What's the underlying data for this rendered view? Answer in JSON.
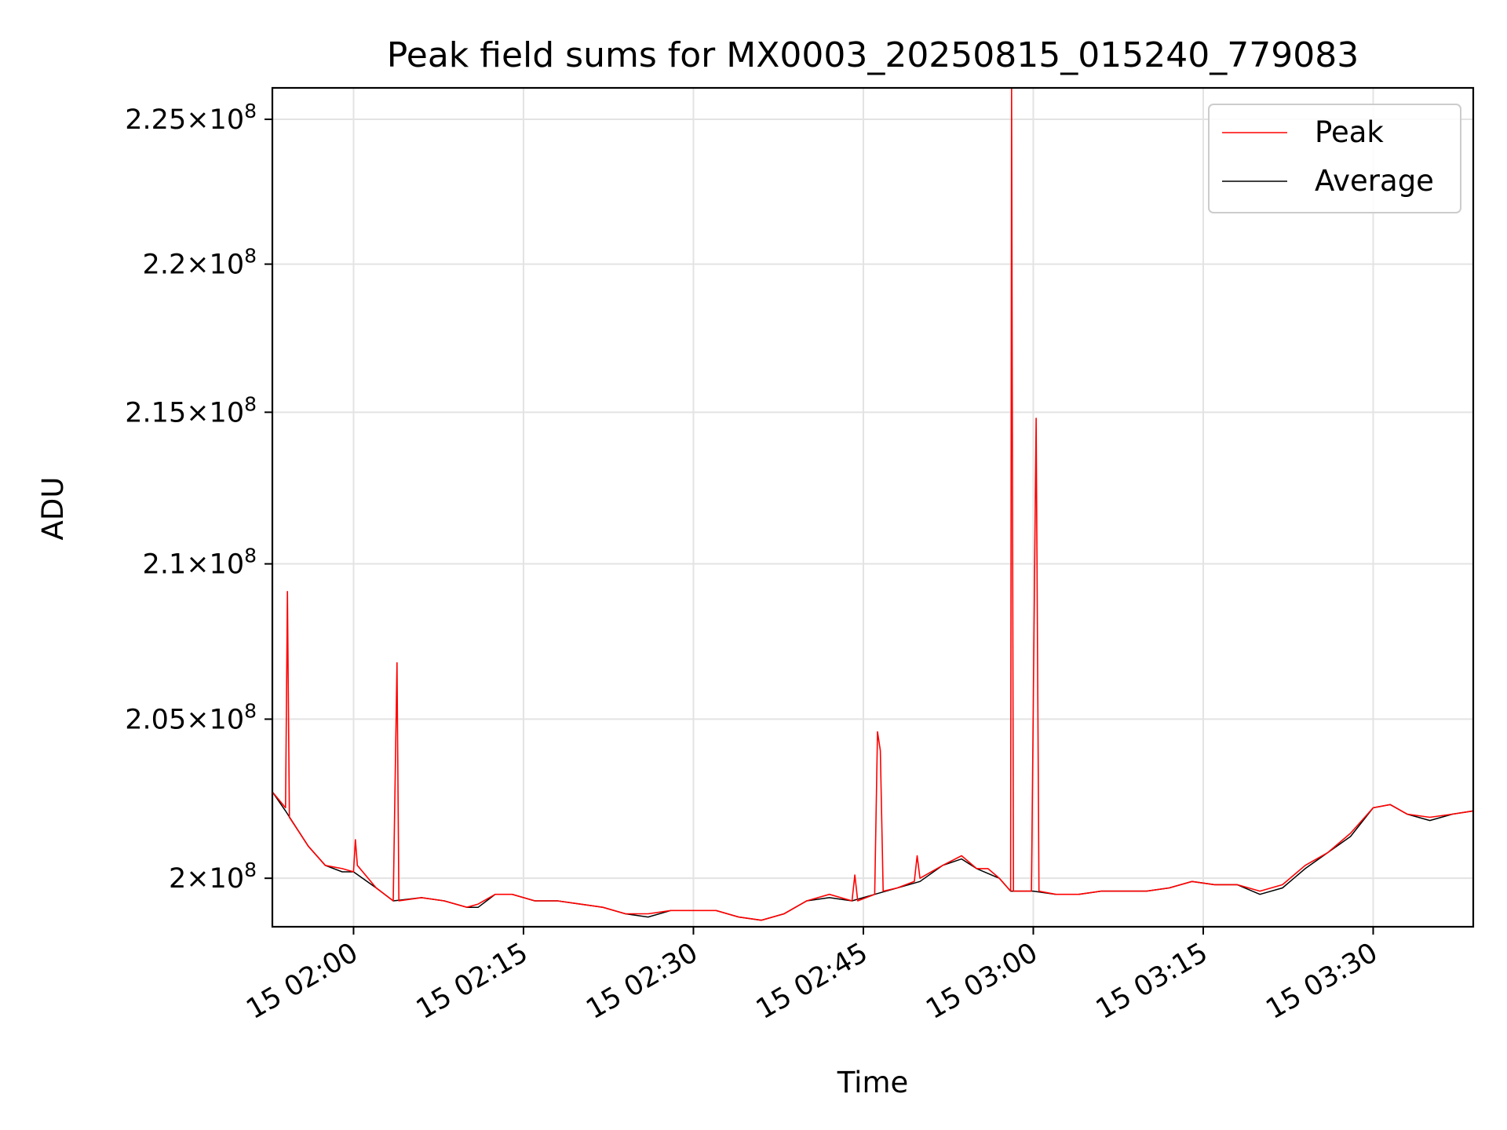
{
  "chart_data": {
    "type": "line",
    "title": "Peak field sums for MX0003_20250815_015240_779083",
    "xlabel": "Time",
    "ylabel": "ADU",
    "x_format": "time (HH:MM, day 15)",
    "xlim": [
      "01:52:50",
      "03:38:50"
    ],
    "ylim": [
      198500000,
      226100000
    ],
    "y_scale": "log",
    "grid": true,
    "legend_position": "top-right",
    "x_ticks": [
      "15 02:00",
      "15 02:15",
      "15 02:30",
      "15 02:45",
      "15 03:00",
      "15 03:15",
      "15 03:30"
    ],
    "y_ticks": [
      {
        "value": 200000000,
        "mant": "2",
        "exp": "8"
      },
      {
        "value": 205000000,
        "mant": "2.05",
        "exp": "8"
      },
      {
        "value": 210000000,
        "mant": "2.1",
        "exp": "8"
      },
      {
        "value": 215000000,
        "mant": "2.15",
        "exp": "8"
      },
      {
        "value": 220000000,
        "mant": "2.2",
        "exp": "8"
      },
      {
        "value": 225000000,
        "mant": "2.25",
        "exp": "8"
      }
    ],
    "series": [
      {
        "name": "Peak",
        "color": "#ff0000",
        "points": [
          [
            "01:52:50",
            202700000
          ],
          [
            "01:54:00",
            202200000
          ],
          [
            "01:54:10",
            209100000
          ],
          [
            "01:54:20",
            201900000
          ],
          [
            "01:56:00",
            201000000
          ],
          [
            "01:57:30",
            200400000
          ],
          [
            "01:59:00",
            200300000
          ],
          [
            "02:00:00",
            200200000
          ],
          [
            "02:00:10",
            201200000
          ],
          [
            "02:00:20",
            200400000
          ],
          [
            "02:02:00",
            199700000
          ],
          [
            "02:03:30",
            199300000
          ],
          [
            "02:03:50",
            206800000
          ],
          [
            "02:04:00",
            199300000
          ],
          [
            "02:06:00",
            199400000
          ],
          [
            "02:08:00",
            199300000
          ],
          [
            "02:10:00",
            199100000
          ],
          [
            "02:11:00",
            199200000
          ],
          [
            "02:12:30",
            199500000
          ],
          [
            "02:14:00",
            199500000
          ],
          [
            "02:16:00",
            199300000
          ],
          [
            "02:18:00",
            199300000
          ],
          [
            "02:20:00",
            199200000
          ],
          [
            "02:22:00",
            199100000
          ],
          [
            "02:24:00",
            198900000
          ],
          [
            "02:26:00",
            198900000
          ],
          [
            "02:28:00",
            199000000
          ],
          [
            "02:30:00",
            199000000
          ],
          [
            "02:32:00",
            199000000
          ],
          [
            "02:34:00",
            198800000
          ],
          [
            "02:36:00",
            198700000
          ],
          [
            "02:38:00",
            198900000
          ],
          [
            "02:40:00",
            199300000
          ],
          [
            "02:42:00",
            199500000
          ],
          [
            "02:44:00",
            199300000
          ],
          [
            "02:44:15",
            200100000
          ],
          [
            "02:44:30",
            199300000
          ],
          [
            "02:46:00",
            199500000
          ],
          [
            "02:46:15",
            204600000
          ],
          [
            "02:46:30",
            204000000
          ],
          [
            "02:46:45",
            199600000
          ],
          [
            "02:48:00",
            199700000
          ],
          [
            "02:49:30",
            199900000
          ],
          [
            "02:49:45",
            200700000
          ],
          [
            "02:50:00",
            200000000
          ],
          [
            "02:52:00",
            200400000
          ],
          [
            "02:53:40",
            200700000
          ],
          [
            "02:55:00",
            200300000
          ],
          [
            "02:56:00",
            200300000
          ],
          [
            "02:57:00",
            200000000
          ],
          [
            "02:58:00",
            199600000
          ],
          [
            "02:58:05",
            226100000
          ],
          [
            "02:58:15",
            199600000
          ],
          [
            "02:59:50",
            199600000
          ],
          [
            "03:00:15",
            214800000
          ],
          [
            "03:00:30",
            199600000
          ],
          [
            "03:02:00",
            199500000
          ],
          [
            "03:04:00",
            199500000
          ],
          [
            "03:06:00",
            199600000
          ],
          [
            "03:08:00",
            199600000
          ],
          [
            "03:10:00",
            199600000
          ],
          [
            "03:12:00",
            199700000
          ],
          [
            "03:14:00",
            199900000
          ],
          [
            "03:16:00",
            199800000
          ],
          [
            "03:18:00",
            199800000
          ],
          [
            "03:20:00",
            199600000
          ],
          [
            "03:22:00",
            199800000
          ],
          [
            "03:24:00",
            200400000
          ],
          [
            "03:26:00",
            200800000
          ],
          [
            "03:28:00",
            201400000
          ],
          [
            "03:30:00",
            202200000
          ],
          [
            "03:31:30",
            202300000
          ],
          [
            "03:33:00",
            202000000
          ],
          [
            "03:35:00",
            201900000
          ],
          [
            "03:37:00",
            202000000
          ],
          [
            "03:38:50",
            202100000
          ]
        ]
      },
      {
        "name": "Average",
        "color": "#000000",
        "points": [
          [
            "01:52:50",
            202700000
          ],
          [
            "01:54:00",
            202100000
          ],
          [
            "01:56:00",
            201000000
          ],
          [
            "01:57:30",
            200400000
          ],
          [
            "01:59:00",
            200200000
          ],
          [
            "02:00:00",
            200200000
          ],
          [
            "02:02:00",
            199700000
          ],
          [
            "02:03:30",
            199300000
          ],
          [
            "02:06:00",
            199400000
          ],
          [
            "02:08:00",
            199300000
          ],
          [
            "02:10:00",
            199100000
          ],
          [
            "02:11:00",
            199100000
          ],
          [
            "02:12:30",
            199500000
          ],
          [
            "02:14:00",
            199500000
          ],
          [
            "02:16:00",
            199300000
          ],
          [
            "02:18:00",
            199300000
          ],
          [
            "02:20:00",
            199200000
          ],
          [
            "02:22:00",
            199100000
          ],
          [
            "02:24:00",
            198900000
          ],
          [
            "02:26:00",
            198800000
          ],
          [
            "02:28:00",
            199000000
          ],
          [
            "02:30:00",
            199000000
          ],
          [
            "02:32:00",
            199000000
          ],
          [
            "02:34:00",
            198800000
          ],
          [
            "02:36:00",
            198700000
          ],
          [
            "02:38:00",
            198900000
          ],
          [
            "02:40:00",
            199300000
          ],
          [
            "02:42:00",
            199400000
          ],
          [
            "02:44:00",
            199300000
          ],
          [
            "02:46:00",
            199500000
          ],
          [
            "02:48:00",
            199700000
          ],
          [
            "02:50:00",
            199900000
          ],
          [
            "02:52:00",
            200400000
          ],
          [
            "02:53:40",
            200600000
          ],
          [
            "02:55:00",
            200300000
          ],
          [
            "02:57:00",
            200000000
          ],
          [
            "02:58:00",
            199600000
          ],
          [
            "03:00:00",
            199600000
          ],
          [
            "03:02:00",
            199500000
          ],
          [
            "03:04:00",
            199500000
          ],
          [
            "03:06:00",
            199600000
          ],
          [
            "03:08:00",
            199600000
          ],
          [
            "03:10:00",
            199600000
          ],
          [
            "03:12:00",
            199700000
          ],
          [
            "03:14:00",
            199900000
          ],
          [
            "03:16:00",
            199800000
          ],
          [
            "03:18:00",
            199800000
          ],
          [
            "03:20:00",
            199500000
          ],
          [
            "03:22:00",
            199700000
          ],
          [
            "03:24:00",
            200300000
          ],
          [
            "03:26:00",
            200800000
          ],
          [
            "03:28:00",
            201300000
          ],
          [
            "03:30:00",
            202200000
          ],
          [
            "03:31:30",
            202300000
          ],
          [
            "03:33:00",
            202000000
          ],
          [
            "03:35:00",
            201800000
          ],
          [
            "03:37:00",
            202000000
          ],
          [
            "03:38:50",
            202100000
          ]
        ]
      }
    ]
  }
}
